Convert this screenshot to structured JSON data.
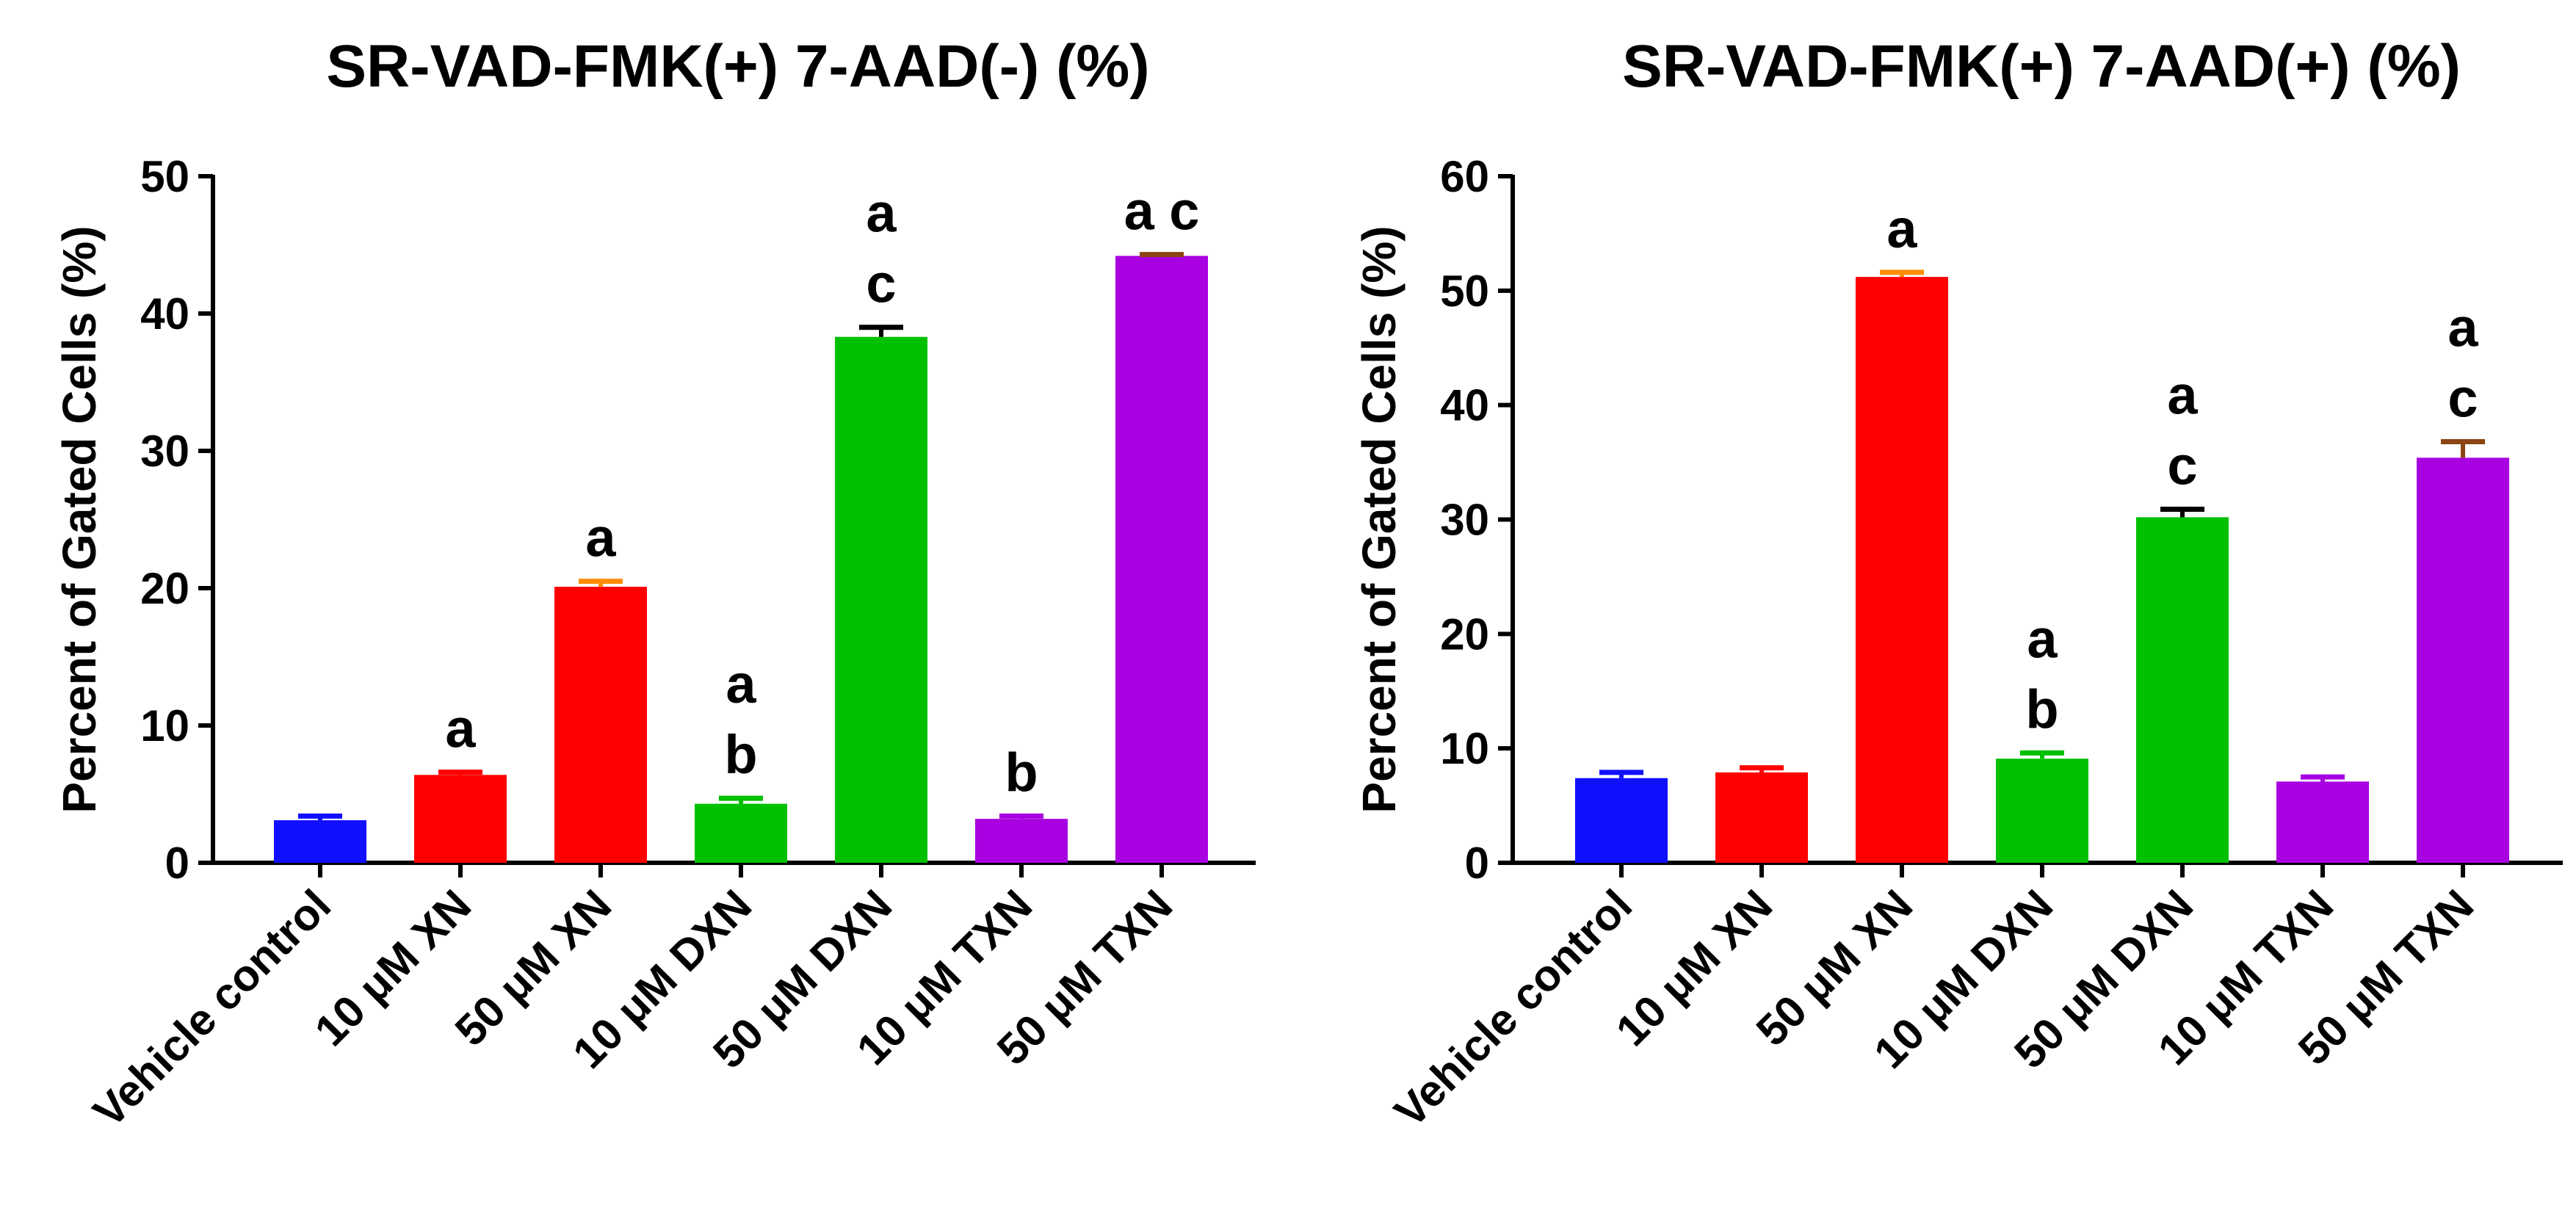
{
  "chart_data": [
    {
      "type": "bar",
      "title": "SR-VAD-FMK(+) 7-AAD(-) (%)",
      "xlabel": "",
      "ylabel": "Percent of Gated Cells (%)",
      "ylim": [
        0,
        50
      ],
      "yticks": [
        0,
        10,
        20,
        30,
        40,
        50
      ],
      "grid": false,
      "categories": [
        "Vehicle control",
        "10 μM XN",
        "50 μM XN",
        "10 μM DXN",
        "50 μM DXN",
        "10 μM TXN",
        "50 μM TXN"
      ],
      "values": [
        3.1,
        6.4,
        20.1,
        4.3,
        38.3,
        3.2,
        44.2
      ],
      "errors": [
        0.3,
        0.2,
        0.4,
        0.4,
        0.7,
        0.2,
        0.1
      ],
      "bar_colors": [
        "#1010ff",
        "#ff0000",
        "#ff0000",
        "#00c000",
        "#00c000",
        "#a800e0",
        "#a800e0"
      ],
      "error_colors": [
        "#1010ff",
        "#ff0000",
        "#ff8c00",
        "#00c000",
        "#000000",
        "#a800e0",
        "#8b4513"
      ],
      "annotations": [
        [],
        [
          "a"
        ],
        [
          "a"
        ],
        [
          "a",
          "b"
        ],
        [
          "a",
          "c"
        ],
        [
          "b"
        ],
        [
          "a c"
        ]
      ]
    },
    {
      "type": "bar",
      "title": "SR-VAD-FMK(+) 7-AAD(+) (%)",
      "xlabel": "",
      "ylabel": "Percent of Gated Cells (%)",
      "ylim": [
        0,
        60
      ],
      "yticks": [
        0,
        10,
        20,
        30,
        40,
        50,
        60
      ],
      "grid": false,
      "categories": [
        "Vehicle control",
        "10 μM XN",
        "50 μM XN",
        "10 μM DXN",
        "50 μM DXN",
        "10 μM TXN",
        "50 μM TXN"
      ],
      "values": [
        7.4,
        7.9,
        51.2,
        9.1,
        30.2,
        7.1,
        35.4
      ],
      "errors": [
        0.5,
        0.4,
        0.4,
        0.5,
        0.7,
        0.4,
        1.4
      ],
      "bar_colors": [
        "#1010ff",
        "#ff0000",
        "#ff0000",
        "#00c000",
        "#00c000",
        "#a800e0",
        "#a800e0"
      ],
      "error_colors": [
        "#1010ff",
        "#ff0000",
        "#ff8c00",
        "#00c000",
        "#000000",
        "#a800e0",
        "#8b4513"
      ],
      "annotations": [
        [],
        [],
        [
          "a"
        ],
        [
          "a",
          "b"
        ],
        [
          "a",
          "c"
        ],
        [],
        [
          "a",
          "c"
        ]
      ]
    }
  ]
}
